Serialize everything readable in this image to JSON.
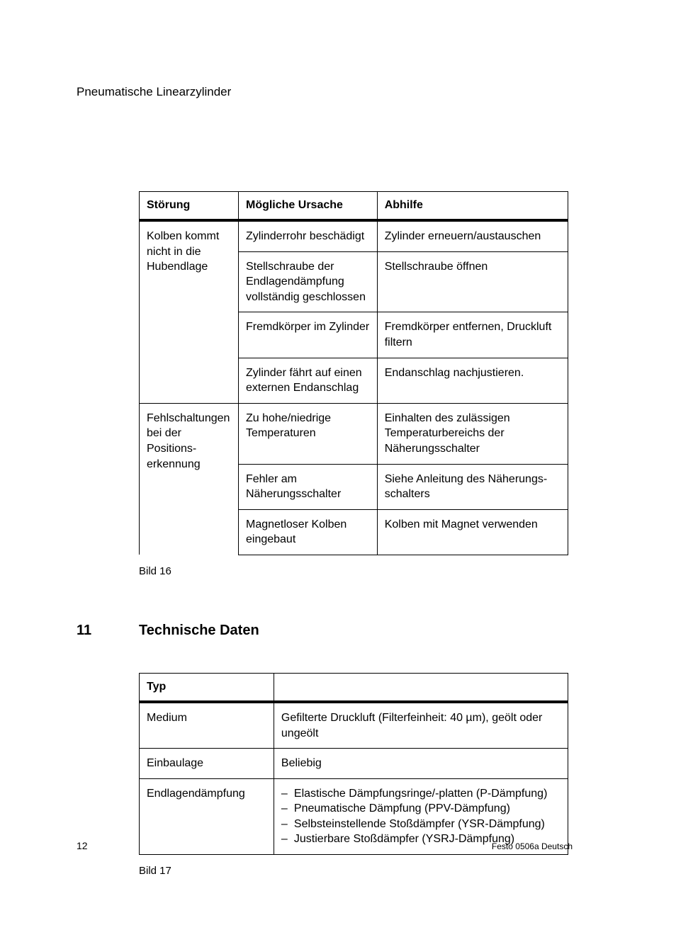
{
  "header": {
    "title": "Pneumatische Linearzylinder"
  },
  "table1": {
    "columns": [
      "Störung",
      "Mögliche Ursache",
      "Abhilfe"
    ],
    "groups": [
      {
        "fault": "Kolben kommt nicht in die Hubendlage",
        "rows": [
          {
            "cause": "Zylinderrohr beschädigt",
            "remedy": "Zylinder erneuern/austauschen"
          },
          {
            "cause": "Stellschraube der Endlagendämpfung vollständig geschlossen",
            "remedy": "Stellschraube öffnen"
          },
          {
            "cause": "Fremdkörper im Zylinder",
            "remedy": "Fremdkörper entfernen, Druckluft filtern"
          },
          {
            "cause": "Zylinder fährt auf einen externen Endanschlag",
            "remedy": "Endanschlag nachjustieren."
          }
        ]
      },
      {
        "fault": "Fehlschaltungen bei der Positions­erkennung",
        "rows": [
          {
            "cause": "Zu hohe/niedrige Temperaturen",
            "remedy": "Einhalten des zulässigen Tempera­turbereichs der Näherungsschalter"
          },
          {
            "cause": "Fehler am Näherungsschalter",
            "remedy": "Siehe Anleitung des Näherungs­schalters"
          },
          {
            "cause": "Magnetloser Kolben eingebaut",
            "remedy": "Kolben mit Magnet verwenden"
          }
        ]
      }
    ],
    "caption": "Bild 16"
  },
  "section": {
    "number": "11",
    "title": "Technische Daten"
  },
  "table2": {
    "columns": [
      "Typ",
      ""
    ],
    "rows": [
      {
        "label": "Medium",
        "value": "Gefilterte Druckluft (Filterfeinheit: 40 µm), geölt oder ungeölt"
      },
      {
        "label": "Einbaulage",
        "value": "Beliebig"
      },
      {
        "label": "Endlagendämpfung",
        "list": [
          "Elastische Dämpfungsringe/-platten (P-Dämpfung)",
          "Pneumatische Dämpfung (PPV-Dämpfung)",
          "Selbsteinstellende Stoßdämpfer (YSR-Dämpfung)",
          "Justierbare Stoßdämpfer (YSRJ-Dämpfung)"
        ]
      }
    ],
    "caption": "Bild 17"
  },
  "footer": {
    "page": "12",
    "text": "Festo  0506a Deutsch"
  }
}
